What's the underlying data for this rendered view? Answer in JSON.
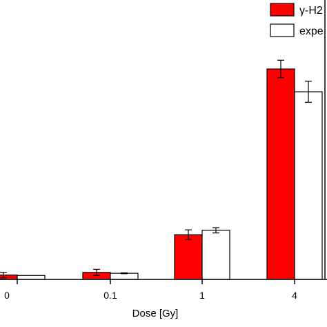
{
  "chart_data": {
    "type": "bar",
    "title": "",
    "xlabel": "Dose [Gy]",
    "ylabel": "",
    "categories": [
      "0",
      "0.1",
      "1",
      "4"
    ],
    "ylim": [
      0,
      24
    ],
    "grid": false,
    "legend_position": "top-right",
    "series": [
      {
        "name": "γ-H2",
        "color": "#ff0000",
        "edge": "#000000",
        "values": [
          0.5,
          0.8,
          5.1,
          24.0
        ],
        "errors": [
          0.3,
          0.35,
          0.55,
          1.0
        ]
      },
      {
        "name": "expe",
        "color": "#ffffff",
        "edge": "#000000",
        "values": [
          0.45,
          0.7,
          5.6,
          21.4
        ],
        "errors": [
          0.0,
          0.05,
          0.3,
          1.2
        ]
      }
    ]
  }
}
